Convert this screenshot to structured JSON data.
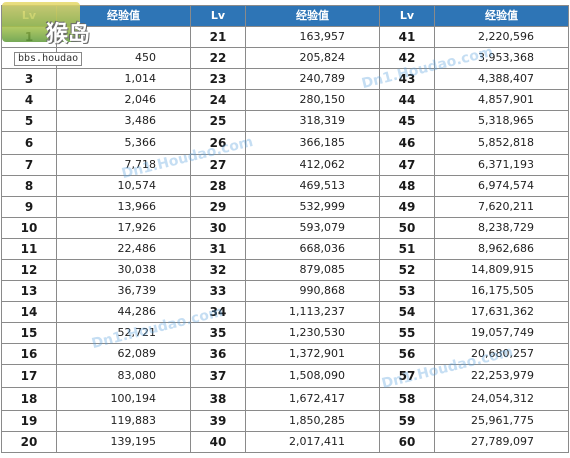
{
  "header": {
    "lv": "Lv",
    "xp": "经验值"
  },
  "rows": [
    [
      {
        "lv": "1",
        "xp": ""
      },
      {
        "lv": "21",
        "xp": "163,957"
      },
      {
        "lv": "41",
        "xp": "2,220,596"
      }
    ],
    [
      {
        "lv": "2",
        "xp": "450"
      },
      {
        "lv": "22",
        "xp": "205,824"
      },
      {
        "lv": "42",
        "xp": "3,953,368"
      }
    ],
    [
      {
        "lv": "3",
        "xp": "1,014"
      },
      {
        "lv": "23",
        "xp": "240,789"
      },
      {
        "lv": "43",
        "xp": "4,388,407"
      }
    ],
    [
      {
        "lv": "4",
        "xp": "2,046"
      },
      {
        "lv": "24",
        "xp": "280,150"
      },
      {
        "lv": "44",
        "xp": "4,857,901"
      }
    ],
    [
      {
        "lv": "5",
        "xp": "3,486"
      },
      {
        "lv": "25",
        "xp": "318,319"
      },
      {
        "lv": "45",
        "xp": "5,318,965"
      }
    ],
    [
      {
        "lv": "6",
        "xp": "5,366"
      },
      {
        "lv": "26",
        "xp": "366,185"
      },
      {
        "lv": "46",
        "xp": "5,852,818"
      }
    ],
    [
      {
        "lv": "7",
        "xp": "7,718"
      },
      {
        "lv": "27",
        "xp": "412,062"
      },
      {
        "lv": "47",
        "xp": "6,371,193"
      }
    ],
    [
      {
        "lv": "8",
        "xp": "10,574"
      },
      {
        "lv": "28",
        "xp": "469,513"
      },
      {
        "lv": "48",
        "xp": "6,974,574"
      }
    ],
    [
      {
        "lv": "9",
        "xp": "13,966"
      },
      {
        "lv": "29",
        "xp": "532,999"
      },
      {
        "lv": "49",
        "xp": "7,620,211"
      }
    ],
    [
      {
        "lv": "10",
        "xp": "17,926"
      },
      {
        "lv": "30",
        "xp": "593,079"
      },
      {
        "lv": "50",
        "xp": "8,238,729"
      }
    ],
    [
      {
        "lv": "11",
        "xp": "22,486"
      },
      {
        "lv": "31",
        "xp": "668,036"
      },
      {
        "lv": "51",
        "xp": "8,962,686"
      }
    ],
    [
      {
        "lv": "12",
        "xp": "30,038"
      },
      {
        "lv": "32",
        "xp": "879,085"
      },
      {
        "lv": "52",
        "xp": "14,809,915"
      }
    ],
    [
      {
        "lv": "13",
        "xp": "36,739"
      },
      {
        "lv": "33",
        "xp": "990,868"
      },
      {
        "lv": "53",
        "xp": "16,175,505"
      }
    ],
    [
      {
        "lv": "14",
        "xp": "44,286"
      },
      {
        "lv": "34",
        "xp": "1,113,237"
      },
      {
        "lv": "54",
        "xp": "17,631,362"
      }
    ],
    [
      {
        "lv": "15",
        "xp": "52,721"
      },
      {
        "lv": "35",
        "xp": "1,230,530"
      },
      {
        "lv": "55",
        "xp": "19,057,749"
      }
    ],
    [
      {
        "lv": "16",
        "xp": "62,089"
      },
      {
        "lv": "36",
        "xp": "1,372,901"
      },
      {
        "lv": "56",
        "xp": "20,680,257"
      }
    ],
    [
      {
        "lv": "17",
        "xp": "83,080"
      },
      {
        "lv": "37",
        "xp": "1,508,090"
      },
      {
        "lv": "57",
        "xp": "22,253,979"
      }
    ],
    [
      {
        "lv": "18",
        "xp": "100,194"
      },
      {
        "lv": "38",
        "xp": "1,672,417"
      },
      {
        "lv": "58",
        "xp": "24,054,312"
      }
    ],
    [
      {
        "lv": "19",
        "xp": "119,883"
      },
      {
        "lv": "39",
        "xp": "1,850,285"
      },
      {
        "lv": "59",
        "xp": "25,961,775"
      }
    ],
    [
      {
        "lv": "20",
        "xp": "139,195"
      },
      {
        "lv": "40",
        "xp": "2,017,411"
      },
      {
        "lv": "60",
        "xp": "27,789,097"
      }
    ]
  ],
  "watermark": {
    "logo_text": "猴岛",
    "logo_url": "bbs.houdao",
    "logo_icon": "palm-tree-logo-icon",
    "site_texts": [
      "Dn1.Houdao.com",
      "Dn1.Houdao.com",
      "Dn1.Houdao.com",
      "Dn1.Houdao.com"
    ]
  },
  "colors": {
    "header_bg": "#2e75b6",
    "header_text": "#ffffff",
    "border": "#8a8a8a"
  }
}
